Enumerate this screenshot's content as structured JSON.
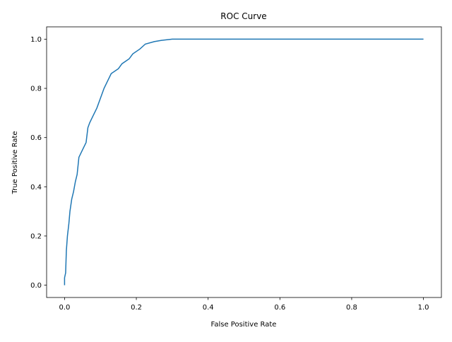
{
  "chart_data": {
    "type": "line",
    "title": "ROC Curve",
    "xlabel": "False Positive Rate",
    "ylabel": "True Positive Rate",
    "x": [
      0,
      0,
      0.003,
      0.005,
      0.008,
      0.012,
      0.015,
      0.02,
      0.025,
      0.03,
      0.035,
      0.04,
      0.05,
      0.06,
      0.065,
      0.07,
      0.08,
      0.09,
      0.1,
      0.11,
      0.12,
      0.13,
      0.15,
      0.16,
      0.18,
      0.19,
      0.21,
      0.225,
      0.25,
      0.27,
      0.3,
      1.0
    ],
    "series": [
      {
        "color": "#1f77b4",
        "values": [
          0,
          0.03,
          0.05,
          0.14,
          0.2,
          0.25,
          0.3,
          0.35,
          0.38,
          0.42,
          0.45,
          0.52,
          0.55,
          0.58,
          0.64,
          0.66,
          0.69,
          0.72,
          0.76,
          0.8,
          0.83,
          0.86,
          0.88,
          0.9,
          0.92,
          0.94,
          0.96,
          0.98,
          0.99,
          0.995,
          1.0,
          1.0
        ]
      }
    ],
    "xlim": [
      -0.05,
      1.05
    ],
    "ylim": [
      -0.05,
      1.05
    ],
    "xticks": [
      {
        "value": 0,
        "label": "0.0"
      },
      0.2,
      0.4,
      0.6,
      0.8,
      {
        "value": 1,
        "label": "1.0"
      }
    ],
    "yticks": [
      {
        "value": 0,
        "label": "0.0"
      },
      0.2,
      0.4,
      0.6,
      0.8,
      {
        "value": 1,
        "label": "1.0"
      }
    ]
  }
}
